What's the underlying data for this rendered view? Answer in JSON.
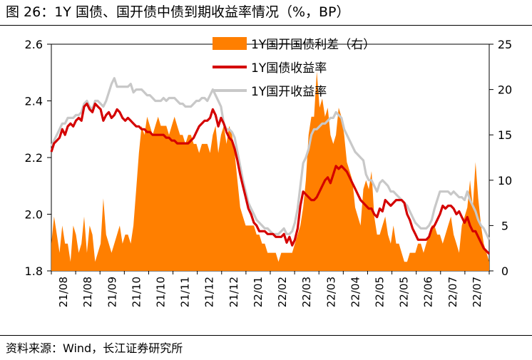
{
  "title": "图 26：1Y 国债、国开债中债到期收益率情况（%，BP）",
  "source": "资料来源：Wind，长江证券研究所",
  "colors": {
    "spread": "#ff7f00",
    "govt": "#d40000",
    "cdb": "#c8c8c8"
  },
  "chart_data": {
    "type": "line",
    "title": "1Y 国债、国开债中债到期收益率情况（%，BP）",
    "y_left": {
      "range": [
        1.8,
        2.6
      ],
      "ticks": [
        "1.8",
        "2.0",
        "2.2",
        "2.4",
        "2.6"
      ]
    },
    "y_right": {
      "range": [
        0,
        25
      ],
      "ticks": [
        "0",
        "5",
        "10",
        "15",
        "20",
        "25"
      ]
    },
    "x_tick_labels": [
      "21/08",
      "21/08",
      "21/09",
      "21/10",
      "21/10",
      "21/11",
      "21/12",
      "21/12",
      "22/01",
      "22/02",
      "22/03",
      "22/03",
      "22/04",
      "22/05",
      "22/05",
      "22/06",
      "22/07",
      "22/07"
    ],
    "legend": [
      "1Y国开国债利差（右）",
      "1Y国债收益率",
      "1Y国开收益率"
    ],
    "series": [
      {
        "name": "1Y国开国债利差（右）",
        "type": "area",
        "axis": "right",
        "values": [
          3,
          6,
          4,
          2,
          5,
          3,
          3,
          1,
          5,
          4,
          2,
          3,
          6,
          2,
          5,
          4,
          1,
          2,
          3,
          8,
          4,
          3,
          2,
          3,
          4,
          5,
          3,
          4,
          4,
          3,
          5,
          9,
          13,
          16,
          15,
          17,
          16,
          15,
          16,
          17,
          16,
          16,
          16,
          15,
          16,
          17,
          16,
          15,
          15,
          14,
          15,
          15,
          14,
          14,
          13,
          14,
          14,
          14,
          13,
          15,
          16,
          13,
          15,
          16,
          14,
          16,
          15,
          13,
          10,
          7,
          6,
          5,
          5,
          5,
          5,
          4,
          4,
          3,
          3,
          2,
          2,
          2,
          2,
          1,
          2,
          2,
          2,
          2,
          2,
          3,
          4,
          5,
          7,
          10,
          15,
          17,
          17,
          22,
          18,
          19,
          17,
          18,
          15,
          14,
          15,
          18,
          17,
          15,
          12,
          11,
          10,
          7,
          6,
          5,
          9,
          10,
          9,
          11,
          6,
          4,
          4,
          5,
          6,
          4,
          3,
          5,
          3,
          3,
          2,
          1,
          1,
          2,
          2,
          2,
          3,
          3,
          2,
          3,
          4,
          5,
          5,
          4,
          4,
          3,
          4,
          5,
          6,
          4,
          3,
          2,
          5,
          6,
          7,
          10,
          7,
          12,
          8,
          5,
          3,
          2,
          1
        ]
      },
      {
        "name": "1Y国债收益率",
        "type": "line",
        "axis": "left",
        "values": [
          2.22,
          2.25,
          2.26,
          2.27,
          2.3,
          2.28,
          2.31,
          2.32,
          2.31,
          2.33,
          2.34,
          2.33,
          2.38,
          2.39,
          2.37,
          2.36,
          2.39,
          2.38,
          2.37,
          2.33,
          2.35,
          2.36,
          2.34,
          2.35,
          2.37,
          2.36,
          2.34,
          2.33,
          2.34,
          2.33,
          2.32,
          2.31,
          2.31,
          2.3,
          2.3,
          2.29,
          2.29,
          2.28,
          2.28,
          2.28,
          2.28,
          2.28,
          2.27,
          2.27,
          2.26,
          2.26,
          2.25,
          2.25,
          2.25,
          2.25,
          2.25,
          2.26,
          2.27,
          2.29,
          2.31,
          2.32,
          2.33,
          2.33,
          2.34,
          2.37,
          2.35,
          2.31,
          2.34,
          2.32,
          2.29,
          2.27,
          2.26,
          2.23,
          2.19,
          2.14,
          2.1,
          2.06,
          2.02,
          2.0,
          1.97,
          1.96,
          1.94,
          1.94,
          1.94,
          1.93,
          1.93,
          1.93,
          1.92,
          1.92,
          1.92,
          1.93,
          1.9,
          1.92,
          1.89,
          1.91,
          1.95,
          2.03,
          2.08,
          2.07,
          2.06,
          2.05,
          2.05,
          2.06,
          2.08,
          2.1,
          2.12,
          2.13,
          2.11,
          2.14,
          2.17,
          2.16,
          2.17,
          2.16,
          2.15,
          2.13,
          2.11,
          2.09,
          2.07,
          2.05,
          2.04,
          2.03,
          2.02,
          2.02,
          2.0,
          1.99,
          2.02,
          2.01,
          2.05,
          2.04,
          2.03,
          2.04,
          2.05,
          2.05,
          2.05,
          2.04,
          2.0,
          1.98,
          1.95,
          1.93,
          1.91,
          1.91,
          1.91,
          1.91,
          1.92,
          1.95,
          1.96,
          1.98,
          2.0,
          2.03,
          2.02,
          2.03,
          2.03,
          2.02,
          2.0,
          2.01,
          1.99,
          1.97,
          1.99,
          1.96,
          1.94,
          1.94,
          1.92,
          1.9,
          1.88,
          1.87,
          1.86
        ]
      },
      {
        "name": "1Y国开收益率",
        "type": "line",
        "axis": "left",
        "values": [
          2.24,
          2.26,
          2.28,
          2.3,
          2.32,
          2.32,
          2.34,
          2.34,
          2.34,
          2.35,
          2.35,
          2.36,
          2.39,
          2.4,
          2.38,
          2.37,
          2.4,
          2.4,
          2.39,
          2.38,
          2.4,
          2.43,
          2.46,
          2.48,
          2.45,
          2.45,
          2.45,
          2.45,
          2.45,
          2.46,
          2.43,
          2.44,
          2.44,
          2.44,
          2.43,
          2.42,
          2.42,
          2.41,
          2.4,
          2.4,
          2.4,
          2.41,
          2.4,
          2.41,
          2.41,
          2.41,
          2.4,
          2.39,
          2.39,
          2.38,
          2.38,
          2.38,
          2.39,
          2.4,
          2.4,
          2.41,
          2.41,
          2.4,
          2.42,
          2.44,
          2.42,
          2.4,
          2.38,
          2.32,
          2.3,
          2.3,
          2.29,
          2.27,
          2.22,
          2.17,
          2.12,
          2.08,
          2.04,
          2.02,
          2.0,
          1.98,
          1.97,
          1.96,
          1.95,
          1.95,
          1.94,
          1.93,
          1.93,
          1.93,
          1.94,
          1.95,
          1.93,
          1.93,
          1.94,
          1.97,
          2.02,
          2.1,
          2.18,
          2.2,
          2.23,
          2.28,
          2.3,
          2.3,
          2.31,
          2.32,
          2.32,
          2.33,
          2.34,
          2.34,
          2.36,
          2.35,
          2.34,
          2.3,
          2.28,
          2.26,
          2.24,
          2.22,
          2.21,
          2.2,
          2.19,
          2.14,
          2.12,
          2.12,
          2.1,
          2.08,
          2.11,
          2.12,
          2.11,
          2.1,
          2.08,
          2.08,
          2.07,
          2.06,
          2.05,
          2.04,
          2.03,
          2.01,
          1.99,
          1.97,
          1.96,
          1.95,
          1.95,
          1.95,
          1.96,
          1.98,
          2.02,
          2.05,
          2.08,
          2.08,
          2.08,
          2.08,
          2.07,
          2.08,
          2.07,
          2.06,
          2.06,
          2.05,
          2.08,
          2.05,
          2.03,
          2.01,
          1.98,
          1.96,
          1.95,
          1.93,
          1.91
        ]
      }
    ]
  }
}
